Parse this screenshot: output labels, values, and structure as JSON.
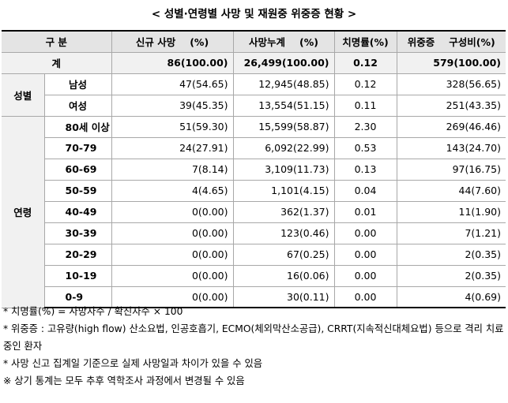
{
  "title": "< 성별·연령별 사망 및 재원중 위중증 현황 >",
  "header": {
    "group": "구 분",
    "new_deaths_label": "신규 사망",
    "new_deaths_unit": "(%)",
    "cum_deaths_label": "사망누계",
    "cum_deaths_unit": "(%)",
    "fatality": "치명률(%)",
    "severe_label": "위중증",
    "severe_ratio": "구성비(%)"
  },
  "total": {
    "label": "계",
    "new_deaths": "86(100.00)",
    "cum_deaths": "26,499(100.00)",
    "fatality": "0.12",
    "severe": "579(100.00)"
  },
  "sex": {
    "group_label": "성별",
    "rows": [
      {
        "label": "남성",
        "new_deaths": "47(54.65)",
        "cum_deaths": "12,945(48.85)",
        "fatality": "0.12",
        "severe": "328(56.65)"
      },
      {
        "label": "여성",
        "new_deaths": "39(45.35)",
        "cum_deaths": "13,554(51.15)",
        "fatality": "0.11",
        "severe": "251(43.35)"
      }
    ]
  },
  "age": {
    "group_label": "연령",
    "rows": [
      {
        "label": "80세 이상",
        "new_deaths": "51(59.30)",
        "cum_deaths": "15,599(58.87)",
        "fatality": "2.30",
        "severe": "269(46.46)"
      },
      {
        "label": "70-79",
        "new_deaths": "24(27.91)",
        "cum_deaths": "6,092(22.99)",
        "fatality": "0.53",
        "severe": "143(24.70)"
      },
      {
        "label": "60-69",
        "new_deaths": "7(8.14)",
        "cum_deaths": "3,109(11.73)",
        "fatality": "0.13",
        "severe": "97(16.75)"
      },
      {
        "label": "50-59",
        "new_deaths": "4(4.65)",
        "cum_deaths": "1,101(4.15)",
        "fatality": "0.04",
        "severe": "44(7.60)"
      },
      {
        "label": "40-49",
        "new_deaths": "0(0.00)",
        "cum_deaths": "362(1.37)",
        "fatality": "0.01",
        "severe": "11(1.90)"
      },
      {
        "label": "30-39",
        "new_deaths": "0(0.00)",
        "cum_deaths": "123(0.46)",
        "fatality": "0.00",
        "severe": "7(1.21)"
      },
      {
        "label": "20-29",
        "new_deaths": "0(0.00)",
        "cum_deaths": "67(0.25)",
        "fatality": "0.00",
        "severe": "2(0.35)"
      },
      {
        "label": "10-19",
        "new_deaths": "0(0.00)",
        "cum_deaths": "16(0.06)",
        "fatality": "0.00",
        "severe": "2(0.35)"
      },
      {
        "label": "0-9",
        "new_deaths": "0(0.00)",
        "cum_deaths": "30(0.11)",
        "fatality": "0.00",
        "severe": "4(0.69)"
      }
    ]
  },
  "notes": [
    "* 치명률(%) = 사망자수 / 확진자수 × 100",
    "* 위중증 : 고유량(high flow) 산소요법, 인공호흡기, ECMO(체외막산소공급), CRRT(지속적신대체요법) 등으로 격리 치료 중인 환자",
    "* 사망 신고 집계일 기준으로 실제 사망일과 차이가 있을 수 있음",
    "※ 상기 통계는 모두 추후 역학조사 과정에서 변경될 수 있음"
  ]
}
